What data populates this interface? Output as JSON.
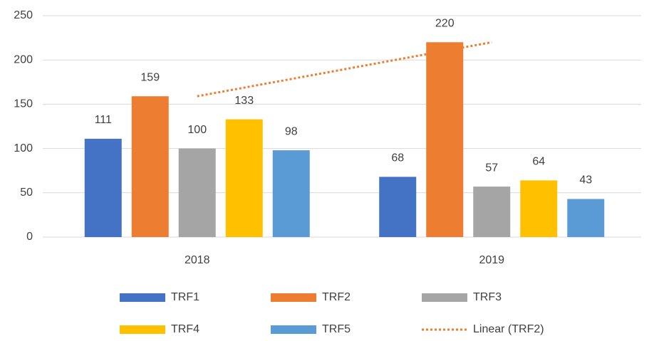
{
  "chart_data": {
    "type": "bar",
    "categories": [
      "2018",
      "2019"
    ],
    "series": [
      {
        "name": "TRF1",
        "color": "#4472c4",
        "values": [
          111,
          68
        ]
      },
      {
        "name": "TRF2",
        "color": "#ed7d31",
        "values": [
          159,
          220
        ]
      },
      {
        "name": "TRF3",
        "color": "#a5a5a5",
        "values": [
          100,
          57
        ]
      },
      {
        "name": "TRF4",
        "color": "#ffc000",
        "values": [
          133,
          64
        ]
      },
      {
        "name": "TRF5",
        "color": "#5b9bd5",
        "values": [
          98,
          43
        ]
      }
    ],
    "trendline": {
      "name": "Linear (TRF2)",
      "color": "#ed7d31",
      "values": [
        159,
        220
      ]
    },
    "ylim": [
      0,
      250
    ],
    "yticks": [
      0,
      50,
      100,
      150,
      200,
      250
    ],
    "grid": true,
    "legend": "bottom"
  }
}
